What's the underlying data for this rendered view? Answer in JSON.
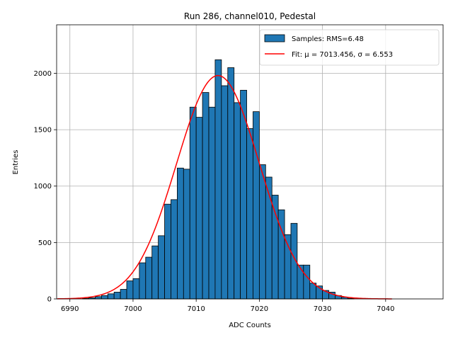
{
  "chart_data": {
    "type": "bar",
    "title": "Run 286, channel010, Pedestal",
    "xlabel": "ADC Counts",
    "ylabel": "Entries",
    "xlim": [
      6987.9,
      7049.1
    ],
    "ylim": [
      0,
      2430
    ],
    "xticks": [
      6990,
      7000,
      7010,
      7020,
      7030,
      7040
    ],
    "yticks": [
      0,
      500,
      1000,
      1500,
      2000
    ],
    "grid": true,
    "legend_position": "top-right",
    "colors": {
      "bars": "#1f77b4",
      "bar_edge": "#000000",
      "fit": "#ff0000",
      "grid": "#b0b0b0"
    },
    "histogram": {
      "name": "Samples: RMS=6.48",
      "bin_edges": [
        6992,
        6993,
        6994,
        6995,
        6996,
        6997,
        6998,
        6999,
        7000,
        7001,
        7002,
        7003,
        7004,
        7005,
        7006,
        7007,
        7008,
        7009,
        7010,
        7011,
        7012,
        7013,
        7014,
        7015,
        7016,
        7017,
        7018,
        7019,
        7020,
        7021,
        7022,
        7023,
        7024,
        7025,
        7026,
        7027,
        7028,
        7029,
        7030,
        7031,
        7032,
        7033,
        7034,
        7035
      ],
      "counts": [
        5,
        10,
        20,
        30,
        45,
        60,
        85,
        160,
        180,
        320,
        370,
        470,
        560,
        840,
        880,
        1160,
        1150,
        1700,
        1610,
        1830,
        1700,
        2120,
        1890,
        2050,
        1740,
        1850,
        1510,
        1660,
        1190,
        1080,
        920,
        790,
        570,
        670,
        300,
        300,
        140,
        115,
        75,
        60,
        30,
        15,
        5
      ]
    },
    "fit": {
      "name": "Fit: μ = 7013.456, σ = 6.553",
      "mu": 7013.456,
      "sigma": 6.553,
      "amplitude": 1980,
      "x_range": [
        6988,
        7041
      ]
    }
  }
}
